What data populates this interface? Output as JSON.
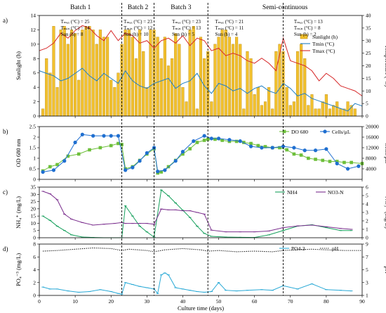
{
  "chart_data": {
    "type": "multi-panel",
    "x_axis": {
      "label": "Culture time (days)",
      "range": [
        0,
        90
      ],
      "ticks": [
        0,
        10,
        20,
        30,
        40,
        50,
        60,
        70,
        80,
        90
      ]
    },
    "phases": [
      {
        "label": "Batch 1",
        "start": 0,
        "end": 23,
        "tmax": "Tₘₐₓ (°C) = 25",
        "tmin": "Tₘᵢₙ (°C) = 14",
        "sun": "Sun (h) = 8"
      },
      {
        "label": "Batch 2",
        "start": 23,
        "end": 32,
        "tmax": "Tₘₐₓ (°C) = 23",
        "tmin": "Tₘᵢₙ (°C) = 12",
        "sun": "Sun (h) = 10"
      },
      {
        "label": "Batch 3",
        "start": 32,
        "end": 47,
        "tmax": "Tₘₐₓ (°C) = 23",
        "tmin": "Tₘᵢₙ (°C) = 13",
        "sun": "Sun (h) = 5"
      },
      {
        "label": "Semi-continuous",
        "start": 47,
        "end": 90,
        "tmax": "Tₘₐₓ (°C) = 21",
        "tmin": "Tₘᵢₙ (°C) = 11",
        "sun": "Sun (h) = 4"
      },
      {
        "label": "",
        "start": 68,
        "end": 90,
        "tmax": "Tₘₐₓ (°C) = 13",
        "tmin": "Tₘᵢₙ (°C) = 8",
        "sun": "Sun (h) = 2"
      }
    ],
    "divider_days": [
      23,
      32,
      47,
      68
    ],
    "panels": [
      {
        "letter": "a)",
        "ylabel_left": "Sunlight (h)",
        "ylabel_right": "Temperature (°C)",
        "y_left": {
          "range": [
            0,
            14
          ],
          "ticks": [
            0,
            2,
            4,
            6,
            8,
            10,
            12,
            14
          ]
        },
        "y_right": {
          "range": [
            0,
            40
          ],
          "ticks": [
            0,
            5,
            10,
            15,
            20,
            25,
            30,
            35,
            40
          ]
        },
        "legend_position": "top-right",
        "bars": {
          "name": "Sunlight (h)",
          "color": "#f2c12e",
          "edge": "#b8860b",
          "x": [
            1,
            2,
            3,
            4,
            5,
            6,
            7,
            8,
            9,
            10,
            11,
            12,
            13,
            14,
            15,
            16,
            17,
            18,
            19,
            20,
            21,
            22,
            23,
            24,
            25,
            26,
            27,
            28,
            29,
            30,
            31,
            32,
            33,
            34,
            35,
            36,
            37,
            38,
            39,
            40,
            41,
            42,
            43,
            44,
            45,
            46,
            47,
            48,
            49,
            50,
            51,
            52,
            53,
            54,
            55,
            56,
            57,
            58,
            59,
            60,
            61,
            62,
            63,
            64,
            65,
            66,
            67,
            68,
            69,
            70,
            71,
            72,
            73,
            74,
            75,
            76,
            77,
            78,
            79,
            80,
            81,
            82,
            83,
            84,
            85,
            86,
            87,
            88
          ],
          "values": [
            1,
            8,
            6,
            12.5,
            4,
            12,
            12.5,
            10,
            12,
            11.5,
            5,
            12,
            12.5,
            12.5,
            12,
            10,
            12,
            11,
            11,
            5,
            4,
            6,
            10,
            12,
            12,
            11,
            8,
            12,
            9,
            4,
            12,
            12,
            11,
            8,
            11,
            7,
            8,
            11.5,
            10,
            4,
            2,
            12,
            12.5,
            1,
            11,
            8,
            9,
            2,
            10,
            11,
            12,
            12,
            11,
            10,
            11,
            10,
            1,
            9,
            8,
            3,
            4,
            1.5,
            2,
            4,
            1,
            9,
            10,
            9,
            4,
            1.5,
            2,
            9,
            10,
            8,
            1.5,
            3,
            1,
            1,
            2,
            3,
            1,
            1.5,
            2,
            1,
            1,
            2,
            1.5,
            1
          ]
        },
        "series": [
          {
            "name": "Tmin (°C)",
            "color": "#1f7fc4",
            "axis": "right",
            "x": [
              0,
              2,
              4,
              6,
              8,
              10,
              12,
              14,
              16,
              18,
              20,
              22,
              24,
              26,
              28,
              30,
              32,
              34,
              36,
              38,
              40,
              42,
              44,
              46,
              48,
              50,
              52,
              54,
              56,
              58,
              60,
              62,
              64,
              66,
              68,
              70,
              72,
              74,
              76,
              78,
              80,
              82,
              84,
              86,
              88,
              90
            ],
            "values": [
              18,
              17,
              16,
              14,
              15,
              17,
              19,
              16,
              14,
              17,
              15,
              13,
              18,
              14,
              12,
              11,
              13,
              14,
              15,
              11,
              13,
              14,
              17,
              12,
              9,
              13,
              12,
              10,
              11,
              9,
              11,
              12,
              10,
              9,
              13,
              11,
              8,
              9,
              7,
              6,
              5,
              4,
              3,
              2,
              5,
              4
            ]
          },
          {
            "name": "Tmax (°C)",
            "color": "#d62728",
            "axis": "right",
            "x": [
              0,
              2,
              4,
              6,
              8,
              10,
              12,
              14,
              16,
              18,
              20,
              22,
              24,
              26,
              28,
              30,
              32,
              34,
              36,
              38,
              40,
              42,
              44,
              46,
              48,
              50,
              52,
              54,
              56,
              58,
              60,
              62,
              64,
              66,
              68,
              70,
              72,
              74,
              76,
              78,
              80,
              82,
              84,
              86,
              88,
              90
            ],
            "values": [
              26,
              27,
              29,
              33,
              31,
              34,
              36,
              35,
              32,
              30,
              34,
              30,
              33,
              32,
              29,
              30,
              27,
              30,
              31,
              29,
              32,
              28,
              31,
              30,
              26,
              27,
              24,
              25,
              24,
              22,
              21,
              23,
              21,
              18,
              31,
              22,
              21,
              20,
              18,
              14,
              17,
              15,
              12,
              11,
              10,
              8
            ]
          }
        ]
      },
      {
        "letter": "b)",
        "ylabel_left": "OD 680 nm",
        "ylabel_right": "Cells/µL",
        "y_left": {
          "range": [
            0,
            2.5
          ],
          "ticks": [
            0,
            0.5,
            1,
            1.5,
            2,
            2.5
          ]
        },
        "y_right": {
          "range": [
            0,
            20000
          ],
          "ticks": [
            4000,
            8000,
            12000,
            16000,
            20000
          ]
        },
        "legend_position": "top-right",
        "series": [
          {
            "name": "DO 680",
            "color": "#6dbf3a",
            "marker": "square",
            "axis": "left",
            "x": [
              1,
              3,
              5,
              8,
              11,
              14,
              17,
              20,
              22,
              23,
              24,
              26,
              28,
              30,
              32,
              33,
              34,
              36,
              38,
              40,
              42,
              44,
              46,
              47,
              49,
              51,
              53,
              55,
              57,
              59,
              61,
              63,
              65,
              67,
              69,
              71,
              73,
              75,
              77,
              79,
              81,
              83,
              85,
              87,
              90
            ],
            "values": [
              0.4,
              0.6,
              0.7,
              1.1,
              1.2,
              1.4,
              1.5,
              1.6,
              1.7,
              1.65,
              0.5,
              0.6,
              0.9,
              1.2,
              1.45,
              0.3,
              0.35,
              0.6,
              0.9,
              1.2,
              1.45,
              1.75,
              1.85,
              1.9,
              1.9,
              1.85,
              1.8,
              1.8,
              1.75,
              1.7,
              1.6,
              1.55,
              1.5,
              1.5,
              1.4,
              1.2,
              1.15,
              1.0,
              0.95,
              0.9,
              0.85,
              0.85,
              0.8,
              0.8,
              0.75
            ]
          },
          {
            "name": "Cells/µL",
            "color": "#1f6fd0",
            "marker": "circle",
            "axis": "right",
            "x": [
              1,
              4,
              7,
              10,
              12,
              15,
              18,
              20,
              22,
              24,
              26,
              28,
              30,
              32,
              33,
              35,
              38,
              40,
              43,
              46,
              48,
              50,
              53,
              56,
              59,
              62,
              65,
              68,
              71,
              74,
              77,
              80,
              83,
              86,
              89
            ],
            "values": [
              2800,
              3500,
              7000,
              14000,
              17000,
              16500,
              16500,
              16500,
              16500,
              3500,
              4500,
              7000,
              10000,
              12000,
              3000,
              3500,
              7000,
              10500,
              14500,
              16500,
              15500,
              15500,
              15000,
              14500,
              12500,
              12000,
              12000,
              12500,
              12000,
              11000,
              11000,
              11500,
              6000,
              4000,
              5000
            ]
          }
        ]
      },
      {
        "letter": "c)",
        "ylabel_left": "NH₄⁺ (mg/L)",
        "ylabel_right": "NO₃⁻ (mg/L)",
        "y_left": {
          "range": [
            0,
            35
          ],
          "ticks": [
            0,
            5,
            10,
            15,
            20,
            25,
            30,
            35
          ]
        },
        "y_right": {
          "range": [
            0,
            6
          ],
          "ticks": [
            0,
            1,
            2,
            3,
            4,
            5,
            6
          ]
        },
        "legend_position": "top-right",
        "series": [
          {
            "name": "NH4",
            "color": "#17a05d",
            "marker": "dash",
            "axis": "left",
            "x": [
              1,
              3,
              5,
              7,
              9,
              12,
              15,
              18,
              21,
              23,
              24,
              26,
              28,
              30,
              32,
              34,
              36,
              38,
              40,
              42,
              44,
              46,
              48,
              52,
              56,
              60,
              64,
              68,
              72,
              76,
              80,
              84,
              87
            ],
            "values": [
              15,
              12,
              8,
              5,
              2,
              0.5,
              0.2,
              0,
              0,
              0,
              22,
              15,
              8,
              4,
              0.5,
              33,
              29,
              24,
              19,
              14,
              8,
              3,
              1,
              0.5,
              0.3,
              0.2,
              2,
              5,
              8,
              9,
              7,
              5,
              5
            ]
          },
          {
            "name": "NO3-N",
            "color": "#7b2f8e",
            "marker": "dash",
            "axis": "right",
            "x": [
              1,
              3,
              5,
              7,
              9,
              12,
              15,
              18,
              21,
              23,
              24,
              26,
              28,
              30,
              32,
              34,
              36,
              38,
              40,
              42,
              44,
              46,
              48,
              52,
              56,
              60,
              64,
              68,
              72,
              76,
              80,
              84,
              87
            ],
            "values": [
              5.5,
              5.2,
              4.5,
              2.8,
              2.2,
              1.8,
              1.5,
              1.6,
              1.7,
              1.8,
              1.7,
              1.7,
              1.7,
              1.7,
              1.6,
              3.4,
              3.3,
              3.3,
              3.2,
              3.2,
              3.0,
              2.8,
              0.9,
              0.7,
              0.7,
              0.7,
              0.8,
              1.2,
              1.4,
              1.5,
              1.3,
              1.1,
              1.0
            ]
          }
        ]
      },
      {
        "letter": "d)",
        "ylabel_left": "PO₄⁻³ (mg/L)",
        "ylabel_right": "pH",
        "y_left": {
          "range": [
            0,
            8
          ],
          "ticks": [
            0,
            2,
            4,
            6,
            8
          ]
        },
        "y_right": {
          "range": [
            1,
            9
          ],
          "ticks": [
            1,
            3,
            5,
            7,
            9
          ]
        },
        "legend_position": "top-right",
        "series": [
          {
            "name": "PO4-3",
            "color": "#29a9d6",
            "marker": "dash",
            "axis": "left",
            "x": [
              1,
              3,
              5,
              8,
              11,
              14,
              17,
              20,
              22,
              23,
              24,
              26,
              28,
              30,
              32,
              33,
              34,
              35,
              36,
              38,
              40,
              42,
              44,
              46,
              48,
              50,
              52,
              55,
              58,
              62,
              65,
              68,
              72,
              76,
              80,
              84,
              87
            ],
            "values": [
              1.3,
              1.0,
              1.0,
              0.7,
              0.5,
              0.6,
              0.9,
              0.6,
              0.3,
              0.2,
              2.0,
              1.7,
              1.4,
              1.2,
              1.0,
              0.3,
              3.2,
              3.5,
              3.2,
              1.2,
              1.0,
              0.8,
              0.6,
              0.5,
              0.6,
              2.0,
              0.8,
              0.7,
              0.8,
              0.9,
              0.8,
              1.5,
              1.0,
              1.8,
              0.9,
              0.8,
              0.7
            ]
          },
          {
            "name": "pH",
            "color": "#000000",
            "style": "dotted",
            "axis": "right",
            "x": [
              1,
              5,
              10,
              15,
              20,
              23,
              25,
              30,
              32,
              35,
              40,
              45,
              47,
              50,
              55,
              60,
              65,
              68,
              72,
              76,
              80,
              85,
              90
            ],
            "values": [
              7.9,
              8.0,
              8.2,
              8.4,
              8.3,
              8.0,
              8.2,
              8.0,
              7.8,
              8.1,
              8.3,
              8.1,
              7.9,
              8.0,
              7.8,
              7.9,
              7.8,
              8.0,
              8.1,
              8.2,
              8.1,
              8.0,
              8.0
            ]
          }
        ]
      }
    ]
  }
}
